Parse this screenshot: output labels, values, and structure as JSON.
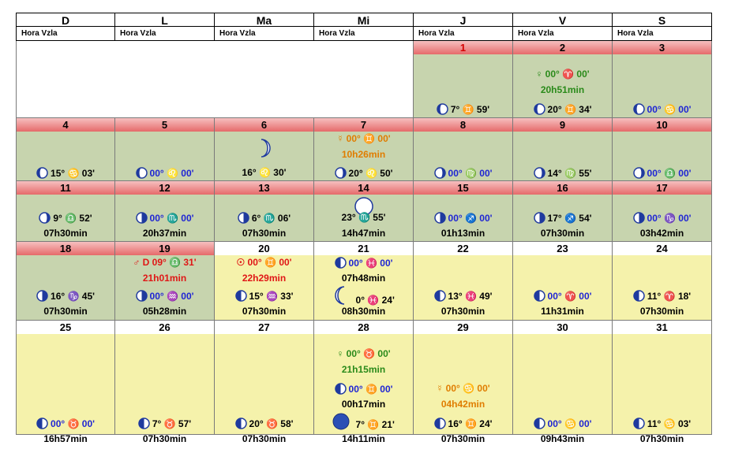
{
  "header": {
    "days": [
      "D",
      "L",
      "Ma",
      "Mi",
      "J",
      "V",
      "S"
    ],
    "sublabel": "Hora Vzla"
  },
  "weeks": [
    [
      {
        "empty": true
      },
      {
        "empty": true
      },
      {
        "empty": true
      },
      {
        "empty": true
      },
      {
        "day": "1",
        "bg": "green",
        "red": true,
        "lines": [
          {
            "pos": 62,
            "phase": "waning-crescent",
            "text": "7°  ♊  59'",
            "cls": "black"
          },
          {
            "pos": 83,
            "text": "07h30min",
            "cls": "black"
          }
        ]
      },
      {
        "day": "2",
        "bg": "green",
        "lines": [
          {
            "pos": 18,
            "text": "♀  00°  ♈  00'",
            "cls": "greentx"
          },
          {
            "pos": 38,
            "text": "20h51min",
            "cls": "greentx"
          },
          {
            "pos": 62,
            "phase": "waning-crescent",
            "text": "20°  ♊  34'",
            "cls": "black"
          },
          {
            "pos": 83,
            "text": "07h30min",
            "cls": "black"
          }
        ]
      },
      {
        "day": "3",
        "bg": "green",
        "lines": [
          {
            "pos": 62,
            "phase": "waning-crescent",
            "text": "00°  ♋  00'",
            "cls": "blue"
          },
          {
            "pos": 83,
            "text": "01h43min",
            "cls": "black"
          }
        ]
      }
    ],
    [
      {
        "day": "4",
        "bg": "green",
        "lines": [
          {
            "pos": 45,
            "phase": "waning-crescent",
            "text": "15°  ♋  03'",
            "cls": "black"
          },
          {
            "pos": 65,
            "text": "07h30min",
            "cls": "black"
          }
        ]
      },
      {
        "day": "5",
        "bg": "green",
        "lines": [
          {
            "pos": 45,
            "phase": "waning-crescent",
            "text": "00°  ♌  00'",
            "cls": "blue"
          },
          {
            "pos": 65,
            "text": "13h25min",
            "cls": "black"
          }
        ]
      },
      {
        "day": "6",
        "bg": "green",
        "lines": [
          {
            "pos": 8,
            "big": "crescent"
          },
          {
            "pos": 45,
            "text": "16°  ♌  30'",
            "cls": "black"
          },
          {
            "pos": 65,
            "text": "22h46min",
            "cls": "black"
          }
        ]
      },
      {
        "day": "7",
        "bg": "green",
        "lines": [
          {
            "pos": 2,
            "text": "☿  00°  ♊  00'",
            "cls": "orange"
          },
          {
            "pos": 22,
            "text": "10h26min",
            "cls": "orange"
          },
          {
            "pos": 45,
            "phase": "waxing-crescent",
            "text": "20°  ♌  50'",
            "cls": "black"
          },
          {
            "pos": 65,
            "text": "07h30min",
            "cls": "black"
          }
        ]
      },
      {
        "day": "8",
        "bg": "green",
        "lines": [
          {
            "pos": 45,
            "phase": "waxing-crescent",
            "text": "00°  ♍  00'",
            "cls": "blue"
          },
          {
            "pos": 65,
            "text": "01h54min",
            "cls": "black"
          }
        ]
      },
      {
        "day": "9",
        "bg": "green",
        "lines": [
          {
            "pos": 45,
            "phase": "waxing-crescent",
            "text": "14°  ♍  55'",
            "cls": "black"
          },
          {
            "pos": 65,
            "text": "07h30min",
            "cls": "black"
          }
        ]
      },
      {
        "day": "10",
        "bg": "green",
        "lines": [
          {
            "pos": 45,
            "phase": "waxing-crescent",
            "text": "00°  ♎  00'",
            "cls": "blue"
          },
          {
            "pos": 65,
            "text": "12h49min",
            "cls": "black"
          }
        ]
      }
    ],
    [
      {
        "day": "11",
        "bg": "green",
        "lines": [
          {
            "pos": 22,
            "phase": "waxing-crescent",
            "text": "9°  ♎  52'",
            "cls": "black"
          },
          {
            "pos": 42,
            "text": "07h30min",
            "cls": "black"
          }
        ]
      },
      {
        "day": "12",
        "bg": "green",
        "lines": [
          {
            "pos": 22,
            "phase": "waxing-gibbous",
            "text": "00°  ♏  00'",
            "cls": "blue"
          },
          {
            "pos": 42,
            "text": "20h37min",
            "cls": "black"
          }
        ]
      },
      {
        "day": "13",
        "bg": "green",
        "lines": [
          {
            "pos": 22,
            "phase": "waxing-gibbous",
            "text": "6°  ♏  06'",
            "cls": "black"
          },
          {
            "pos": 42,
            "text": "07h30min",
            "cls": "black"
          }
        ]
      },
      {
        "day": "14",
        "bg": "green",
        "lines": [
          {
            "pos": 2,
            "big": "full"
          },
          {
            "pos": 22,
            "text": "23°  ♏  55'",
            "cls": "black"
          },
          {
            "pos": 42,
            "text": "14h47min",
            "cls": "black"
          }
        ]
      },
      {
        "day": "15",
        "bg": "green",
        "lines": [
          {
            "pos": 22,
            "phase": "waxing-gibbous",
            "text": "00°  ♐  00'",
            "cls": "blue"
          },
          {
            "pos": 42,
            "text": "01h13min",
            "cls": "black"
          }
        ]
      },
      {
        "day": "16",
        "bg": "green",
        "lines": [
          {
            "pos": 22,
            "phase": "waxing-gibbous",
            "text": "17°  ♐  54'",
            "cls": "black"
          },
          {
            "pos": 42,
            "text": "07h30min",
            "cls": "black"
          }
        ]
      },
      {
        "day": "17",
        "bg": "green",
        "lines": [
          {
            "pos": 22,
            "phase": "waxing-gibbous",
            "text": "00°  ♑  00'",
            "cls": "blue"
          },
          {
            "pos": 42,
            "text": "03h42min",
            "cls": "black"
          }
        ]
      }
    ],
    [
      {
        "day": "18",
        "bg": "green",
        "lines": [
          {
            "pos": 44,
            "phase": "waxing-gibbous",
            "text": "16°  ♑  45'",
            "cls": "black"
          },
          {
            "pos": 64,
            "text": "07h30min",
            "cls": "black"
          }
        ]
      },
      {
        "day": "19",
        "bg": "green",
        "lines": [
          {
            "pos": 2,
            "text": "♂  D  09°  ♎  31'",
            "cls": "red"
          },
          {
            "pos": 22,
            "text": "21h01min",
            "cls": "red"
          },
          {
            "pos": 44,
            "phase": "waxing-gibbous",
            "text": "00°  ♒  00'",
            "cls": "blue"
          },
          {
            "pos": 64,
            "text": "05h28min",
            "cls": "black"
          }
        ]
      },
      {
        "day": "20",
        "bg": "yellow",
        "lines": [
          {
            "pos": 2,
            "text": "☉  00°  ♊  00'",
            "cls": "red"
          },
          {
            "pos": 22,
            "text": "22h29min",
            "cls": "red"
          },
          {
            "pos": 44,
            "phase": "waning-gibbous",
            "text": "15°  ♒  33'",
            "cls": "black"
          },
          {
            "pos": 64,
            "text": "07h30min",
            "cls": "black"
          }
        ]
      },
      {
        "day": "21",
        "bg": "yellow",
        "lines": [
          {
            "pos": 2,
            "phase": "waning-gibbous",
            "text": "00°  ♓  00'",
            "cls": "blue"
          },
          {
            "pos": 22,
            "text": "07h48min",
            "cls": "black"
          },
          {
            "pos": 44,
            "big": "crescent-left",
            "text": "0°  ♓  24'",
            "cls": "black"
          },
          {
            "pos": 64,
            "text": "08h30min",
            "cls": "black"
          }
        ]
      },
      {
        "day": "22",
        "bg": "yellow",
        "lines": [
          {
            "pos": 44,
            "phase": "waning-gibbous",
            "text": "13°  ♓  49'",
            "cls": "black"
          },
          {
            "pos": 64,
            "text": "07h30min",
            "cls": "black"
          }
        ]
      },
      {
        "day": "23",
        "bg": "yellow",
        "lines": [
          {
            "pos": 44,
            "phase": "waning-gibbous",
            "text": "00°  ♈  00'",
            "cls": "blue"
          },
          {
            "pos": 64,
            "text": "11h31min",
            "cls": "black"
          }
        ]
      },
      {
        "day": "24",
        "bg": "yellow",
        "lines": [
          {
            "pos": 44,
            "phase": "waning-gibbous",
            "text": "11°  ♈  18'",
            "cls": "black"
          },
          {
            "pos": 64,
            "text": "07h30min",
            "cls": "black"
          }
        ]
      }
    ],
    [
      {
        "day": "25",
        "bg": "yellow",
        "lines": [
          {
            "pos": 106,
            "phase": "waning-gibbous",
            "text": "00°  ♉  00'",
            "cls": "blue"
          },
          {
            "pos": 126,
            "text": "16h57min",
            "cls": "black"
          }
        ]
      },
      {
        "day": "26",
        "bg": "yellow",
        "lines": [
          {
            "pos": 106,
            "phase": "waning-gibbous",
            "text": "7°  ♉  57'",
            "cls": "black"
          },
          {
            "pos": 126,
            "text": "07h30min",
            "cls": "black"
          }
        ]
      },
      {
        "day": "27",
        "bg": "yellow",
        "lines": [
          {
            "pos": 106,
            "phase": "waning-gibbous",
            "text": "20°  ♉  58'",
            "cls": "black"
          },
          {
            "pos": 126,
            "text": "07h30min",
            "cls": "black"
          }
        ]
      },
      {
        "day": "28",
        "bg": "yellow",
        "lines": [
          {
            "pos": 18,
            "text": "♀  00°  ♉  00'",
            "cls": "greentx"
          },
          {
            "pos": 38,
            "text": "21h15min",
            "cls": "greentx"
          },
          {
            "pos": 62,
            "phase": "waning-gibbous",
            "text": "00°  ♊  00'",
            "cls": "blue"
          },
          {
            "pos": 82,
            "text": "00h17min",
            "cls": "black"
          },
          {
            "pos": 106,
            "big": "new",
            "text": "7°  ♊  21'",
            "cls": "black"
          },
          {
            "pos": 126,
            "text": "14h11min",
            "cls": "black"
          }
        ]
      },
      {
        "day": "29",
        "bg": "yellow",
        "lines": [
          {
            "pos": 62,
            "text": "☿  00°  ♋  00'",
            "cls": "orange"
          },
          {
            "pos": 82,
            "text": "04h42min",
            "cls": "orange"
          },
          {
            "pos": 106,
            "phase": "waning-gibbous",
            "text": "16°  ♊  24'",
            "cls": "black"
          },
          {
            "pos": 126,
            "text": "07h30min",
            "cls": "black"
          }
        ]
      },
      {
        "day": "30",
        "bg": "yellow",
        "lines": [
          {
            "pos": 106,
            "phase": "waning-gibbous",
            "text": "00°  ♋  00'",
            "cls": "blue"
          },
          {
            "pos": 126,
            "text": "09h43min",
            "cls": "black"
          }
        ]
      },
      {
        "day": "31",
        "bg": "yellow",
        "lines": [
          {
            "pos": 106,
            "phase": "waning-gibbous",
            "text": "11°  ♋  03'",
            "cls": "black"
          },
          {
            "pos": 126,
            "text": "07h30min",
            "cls": "black"
          }
        ]
      }
    ]
  ]
}
